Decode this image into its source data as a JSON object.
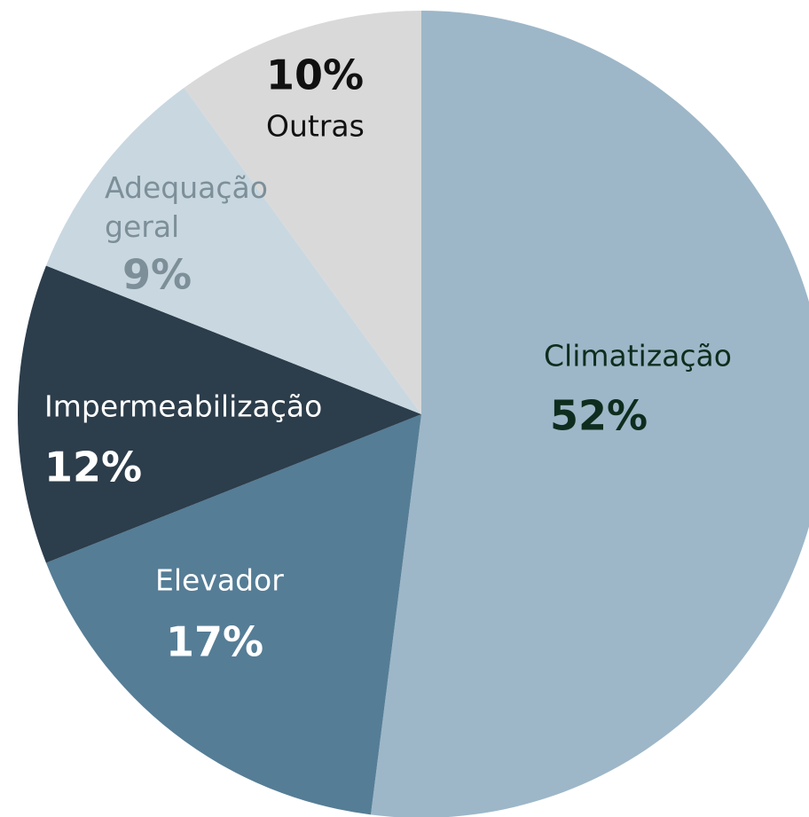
{
  "chart_data": {
    "type": "pie",
    "categories": [
      "Climatização",
      "Elevador",
      "Impermeabilização",
      "Adequação geral",
      "Outras"
    ],
    "values": [
      52,
      17,
      12,
      9,
      10
    ],
    "value_labels": [
      "52%",
      "17%",
      "12%",
      "9%",
      "10%"
    ],
    "colors": [
      "#9db7c8",
      "#557d96",
      "#2c3d4b",
      "#c9d7e0",
      "#d9d9d9"
    ],
    "label_colors": [
      "#0f2d1e",
      "#ffffff",
      "#ffffff",
      "#7d8f99",
      "#111111"
    ]
  }
}
